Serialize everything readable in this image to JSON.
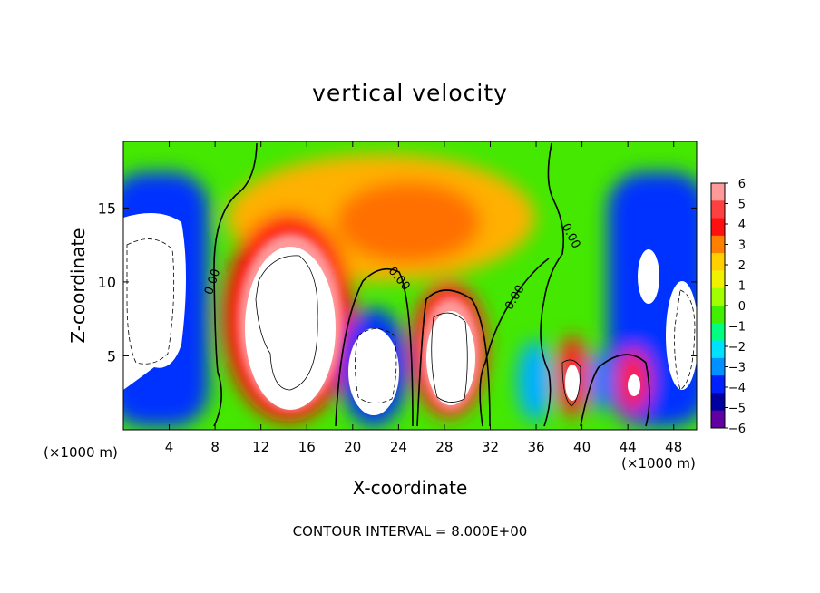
{
  "chart_data": {
    "type": "heatmap",
    "title": "vertical velocity",
    "xlabel": "X-coordinate",
    "ylabel": "Z-coordinate",
    "x_unit_label": "(×1000 m)",
    "xlim": [
      0,
      50
    ],
    "ylim": [
      0,
      19.5
    ],
    "x_ticks": [
      "4",
      "8",
      "12",
      "16",
      "20",
      "24",
      "28",
      "32",
      "36",
      "40",
      "44",
      "48"
    ],
    "y_ticks": [
      "5",
      "10",
      "15"
    ],
    "colorbar": {
      "min": -6,
      "max": 6,
      "labels": [
        "6",
        "5",
        "4",
        "3",
        "2",
        "1",
        "0",
        "−1",
        "−2",
        "−3",
        "−4",
        "−5",
        "−6"
      ],
      "colors": [
        "#ff9a9a",
        "#ff4040",
        "#ff1010",
        "#ff8000",
        "#ffd000",
        "#f0f000",
        "#a0ff00",
        "#40f000",
        "#00ff80",
        "#00e0ff",
        "#0090ff",
        "#0020ff",
        "#0000a0",
        "#6000a0"
      ]
    },
    "contour_labels": [
      "0.00",
      "0.00",
      "0.00",
      "0.00",
      "0.00"
    ],
    "saturated_color": "#ffffff",
    "contour_interval_text": "CONTOUR INTERVAL = 8.000E+00",
    "features": [
      {
        "kind": "downdraft",
        "x": 2.5,
        "z": 9.0,
        "value": -8
      },
      {
        "kind": "updraft",
        "x": 14.5,
        "z": 8.5,
        "value": 10
      },
      {
        "kind": "downdraft",
        "x": 21.5,
        "z": 4.0,
        "value": -7
      },
      {
        "kind": "updraft",
        "x": 28.0,
        "z": 6.0,
        "value": 8
      },
      {
        "kind": "updraft",
        "x": 24.5,
        "z": 14.0,
        "value": 3
      },
      {
        "kind": "updraft",
        "x": 39.0,
        "z": 3.5,
        "value": 7
      },
      {
        "kind": "updraft",
        "x": 44.5,
        "z": 3.0,
        "value": 6
      },
      {
        "kind": "downdraft",
        "x": 47.0,
        "z": 10.0,
        "value": -7
      },
      {
        "kind": "downdraft",
        "x": 44.0,
        "z": 15.5,
        "value": -4
      }
    ]
  }
}
